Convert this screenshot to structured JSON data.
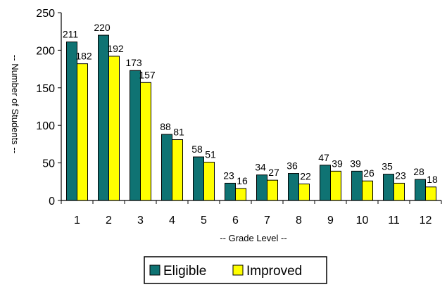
{
  "chart_data": {
    "type": "bar",
    "xlabel": "--  Grade Level  --",
    "ylabel": "--  Number of Students  --",
    "categories": [
      "1",
      "2",
      "3",
      "4",
      "5",
      "6",
      "7",
      "8",
      "9",
      "10",
      "11",
      "12"
    ],
    "ylim": [
      0,
      250
    ],
    "yticks": [
      "0",
      "50",
      "100",
      "150",
      "200",
      "250"
    ],
    "legend_position": "bottom",
    "grid": false,
    "series": [
      {
        "name": "Eligible",
        "color": "#0f7373",
        "values": [
          211,
          220,
          173,
          88,
          58,
          23,
          34,
          36,
          47,
          39,
          35,
          28
        ]
      },
      {
        "name": "Improved",
        "color": "#ffff00",
        "values": [
          182,
          192,
          157,
          81,
          51,
          16,
          27,
          22,
          39,
          26,
          23,
          18
        ]
      }
    ]
  }
}
